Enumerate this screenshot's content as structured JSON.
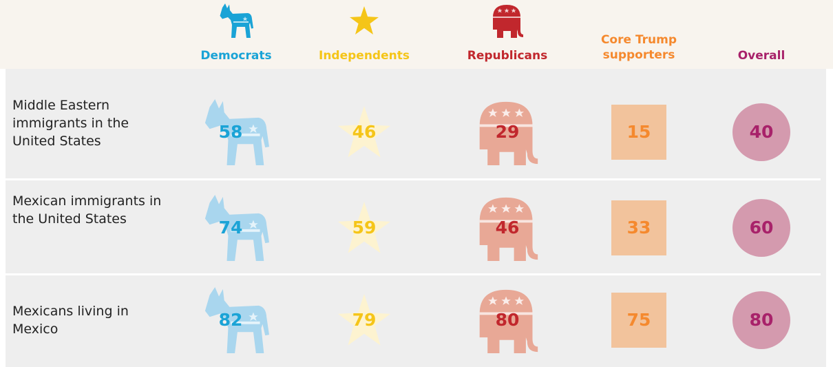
{
  "columns": [
    "Democrats",
    "Independents",
    "Republicans",
    "Core Trump supporters",
    "Overall"
  ],
  "rows": [
    {
      "label": "Middle Eastern immigrants in the United States",
      "values": [
        58,
        46,
        29,
        15,
        40
      ]
    },
    {
      "label": "Mexican immigrants in the United States",
      "values": [
        74,
        59,
        46,
        33,
        60
      ]
    },
    {
      "label": "Mexicans living in Mexico",
      "values": [
        82,
        79,
        80,
        75,
        80
      ]
    }
  ]
}
